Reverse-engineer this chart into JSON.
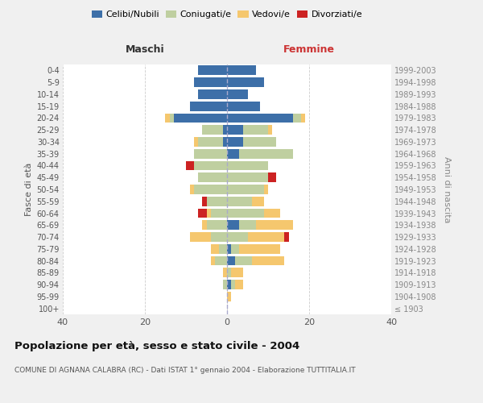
{
  "age_groups": [
    "100+",
    "95-99",
    "90-94",
    "85-89",
    "80-84",
    "75-79",
    "70-74",
    "65-69",
    "60-64",
    "55-59",
    "50-54",
    "45-49",
    "40-44",
    "35-39",
    "30-34",
    "25-29",
    "20-24",
    "15-19",
    "10-14",
    "5-9",
    "0-4"
  ],
  "birth_years": [
    "≤ 1903",
    "1904-1908",
    "1909-1913",
    "1914-1918",
    "1919-1923",
    "1924-1928",
    "1929-1933",
    "1934-1938",
    "1939-1943",
    "1944-1948",
    "1949-1953",
    "1954-1958",
    "1959-1963",
    "1964-1968",
    "1969-1973",
    "1974-1978",
    "1979-1983",
    "1984-1988",
    "1989-1993",
    "1994-1998",
    "1999-2003"
  ],
  "maschi": {
    "celibi": [
      0,
      0,
      0,
      0,
      0,
      0,
      0,
      0,
      0,
      0,
      0,
      0,
      0,
      0,
      1,
      1,
      13,
      9,
      7,
      8,
      7
    ],
    "coniugati": [
      0,
      0,
      1,
      0,
      3,
      2,
      4,
      5,
      4,
      5,
      8,
      7,
      8,
      8,
      6,
      5,
      1,
      0,
      0,
      0,
      0
    ],
    "vedovi": [
      0,
      0,
      0,
      1,
      1,
      2,
      5,
      1,
      1,
      0,
      1,
      0,
      0,
      0,
      1,
      0,
      1,
      0,
      0,
      0,
      0
    ],
    "divorziati": [
      0,
      0,
      0,
      0,
      0,
      0,
      0,
      0,
      2,
      1,
      0,
      0,
      2,
      0,
      0,
      0,
      0,
      0,
      0,
      0,
      0
    ]
  },
  "femmine": {
    "nubili": [
      0,
      0,
      1,
      0,
      2,
      1,
      0,
      3,
      0,
      0,
      0,
      0,
      0,
      3,
      4,
      4,
      16,
      8,
      5,
      9,
      7
    ],
    "coniugate": [
      0,
      0,
      1,
      1,
      4,
      2,
      5,
      4,
      9,
      6,
      9,
      10,
      10,
      13,
      8,
      6,
      2,
      0,
      0,
      0,
      0
    ],
    "vedove": [
      0,
      1,
      2,
      3,
      8,
      10,
      9,
      9,
      4,
      3,
      1,
      0,
      0,
      0,
      0,
      1,
      1,
      0,
      0,
      0,
      0
    ],
    "divorziate": [
      0,
      0,
      0,
      0,
      0,
      0,
      1,
      0,
      0,
      0,
      0,
      2,
      0,
      0,
      0,
      0,
      0,
      0,
      0,
      0,
      0
    ]
  },
  "colors": {
    "celibi": "#3d6fa8",
    "coniugati": "#bfcfa0",
    "vedovi": "#f5c76e",
    "divorziati": "#cc2222"
  },
  "xlim": 40,
  "title": "Popolazione per età, sesso e stato civile - 2004",
  "subtitle": "COMUNE DI AGNANA CALABRA (RC) - Dati ISTAT 1° gennaio 2004 - Elaborazione TUTTITALIA.IT",
  "xlabel_left": "Maschi",
  "xlabel_right": "Femmine",
  "ylabel_left": "Fasce di età",
  "ylabel_right": "Anni di nascita",
  "legend_labels": [
    "Celibi/Nubili",
    "Coniugati/e",
    "Vedovi/e",
    "Divorziati/e"
  ],
  "bg_color": "#f0f0f0",
  "plot_bg_color": "#ffffff"
}
